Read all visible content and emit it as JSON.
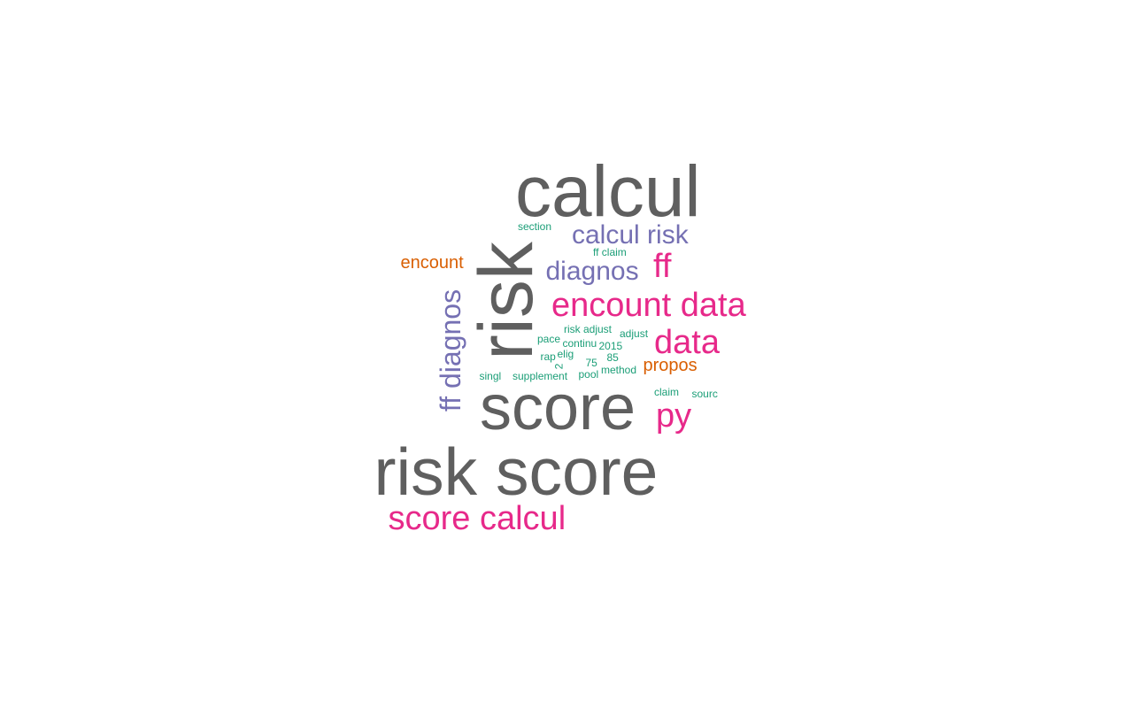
{
  "palette": {
    "gray": "#5f5f5f",
    "purple": "#7570b3",
    "pink": "#e7298a",
    "orange": "#d95f02",
    "green": "#1b9e77"
  },
  "words": [
    {
      "id": "w-calcul",
      "text": "calcul",
      "color": "gray",
      "rotated": false
    },
    {
      "id": "w-risk",
      "text": "risk",
      "color": "gray",
      "rotated": true
    },
    {
      "id": "w-score",
      "text": "score",
      "color": "gray",
      "rotated": false
    },
    {
      "id": "w-risk-score",
      "text": "risk score",
      "color": "gray",
      "rotated": false
    },
    {
      "id": "w-calcul-risk",
      "text": "calcul risk",
      "color": "purple",
      "rotated": false
    },
    {
      "id": "w-diagnos",
      "text": "diagnos",
      "color": "purple",
      "rotated": false
    },
    {
      "id": "w-ff-diagnos",
      "text": "ff diagnos",
      "color": "purple",
      "rotated": true
    },
    {
      "id": "w-ff",
      "text": "ff",
      "color": "pink",
      "rotated": false
    },
    {
      "id": "w-encount-data",
      "text": "encount data",
      "color": "pink",
      "rotated": false
    },
    {
      "id": "w-data",
      "text": "data",
      "color": "pink",
      "rotated": false
    },
    {
      "id": "w-py",
      "text": "py",
      "color": "pink",
      "rotated": false
    },
    {
      "id": "w-score-calcul",
      "text": "score calcul",
      "color": "pink",
      "rotated": false
    },
    {
      "id": "w-encount",
      "text": "encount",
      "color": "orange",
      "rotated": false
    },
    {
      "id": "w-propos",
      "text": "propos",
      "color": "orange",
      "rotated": false
    },
    {
      "id": "w-section",
      "text": "section",
      "color": "green",
      "rotated": false
    },
    {
      "id": "w-ff-claim",
      "text": "ff claim",
      "color": "green",
      "rotated": false
    },
    {
      "id": "w-risk-adjust",
      "text": "risk adjust",
      "color": "green",
      "rotated": false
    },
    {
      "id": "w-adjust",
      "text": "adjust",
      "color": "green",
      "rotated": false
    },
    {
      "id": "w-pace",
      "text": "pace",
      "color": "green",
      "rotated": false
    },
    {
      "id": "w-continu",
      "text": "continu",
      "color": "green",
      "rotated": false
    },
    {
      "id": "w-2015",
      "text": "2015",
      "color": "green",
      "rotated": false
    },
    {
      "id": "w-rap",
      "text": "rap",
      "color": "green",
      "rotated": false
    },
    {
      "id": "w-elig",
      "text": "elig",
      "color": "green",
      "rotated": false
    },
    {
      "id": "w-85",
      "text": "85",
      "color": "green",
      "rotated": false
    },
    {
      "id": "w-2",
      "text": "2",
      "color": "green",
      "rotated": true
    },
    {
      "id": "w-75",
      "text": "75",
      "color": "green",
      "rotated": false
    },
    {
      "id": "w-method",
      "text": "method",
      "color": "green",
      "rotated": false
    },
    {
      "id": "w-pool",
      "text": "pool",
      "color": "green",
      "rotated": false
    },
    {
      "id": "w-singl",
      "text": "singl",
      "color": "green",
      "rotated": false
    },
    {
      "id": "w-supplement",
      "text": "supplement",
      "color": "green",
      "rotated": false
    },
    {
      "id": "w-claim",
      "text": "claim",
      "color": "green",
      "rotated": false
    },
    {
      "id": "w-sourc",
      "text": "sourc",
      "color": "green",
      "rotated": false
    }
  ]
}
